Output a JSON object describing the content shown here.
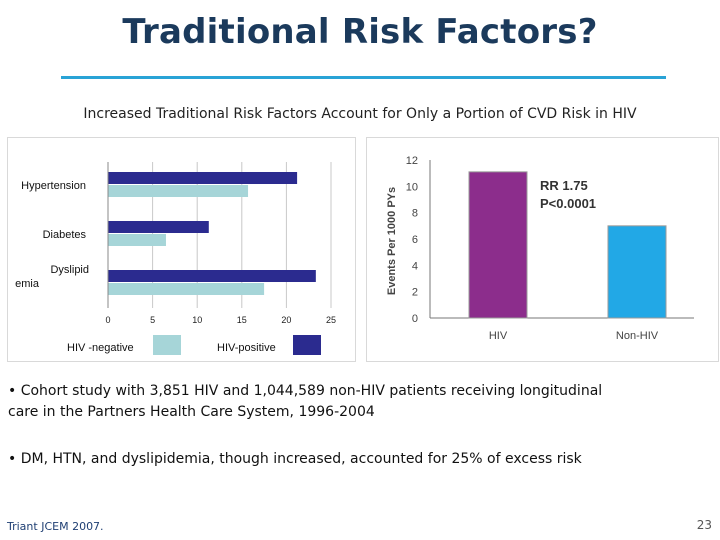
{
  "slide": {
    "title": "Traditional Risk Factors?",
    "subtitle": "Increased Traditional Risk Factors Account for Only a Portion of CVD Risk in HIV",
    "bullets": [
      "• Cohort study with 3,851 HIV and 1,044,589 non-HIV patients receiving longitudinal care in the Partners Health Care System, 1996-2004",
      "• DM, HTN, and dyslipidemia, though increased, accounted for 25% of excess risk"
    ],
    "citation": "Triant  JCEM 2007.",
    "page_number": "23"
  },
  "colors": {
    "title": "#1b3a5c",
    "rule": "#29a3d6",
    "hiv_positive_bar": "#2b2b8f",
    "hiv_negative_bar": "#a6d5d8",
    "hiv_column": "#8c2d8c",
    "non_hiv_column": "#22a8e6"
  },
  "chart_data": [
    {
      "type": "bar",
      "orientation": "horizontal",
      "categories": [
        "Hypertension",
        "Diabetes",
        "Dyslipid emia"
      ],
      "category_label_lines": [
        [
          "Hypertension"
        ],
        [
          "Diabetes"
        ],
        [
          "Dyslipid",
          "emia"
        ]
      ],
      "series": [
        {
          "name": "HIV-positive",
          "values": [
            21.2,
            11.3,
            23.3
          ],
          "color": "#2b2b8f"
        },
        {
          "name": "HIV -negative",
          "values": [
            15.7,
            6.5,
            17.5
          ],
          "color": "#a6d5d8"
        }
      ],
      "xlim": [
        0,
        25
      ],
      "xticks": [
        "0",
        "5",
        "10",
        "15",
        "20",
        "25"
      ],
      "grid": "vertical",
      "legend": "bottom",
      "legend_order": [
        "HIV -negative",
        "HIV-positive"
      ]
    },
    {
      "type": "bar",
      "orientation": "vertical",
      "categories": [
        "HIV",
        "Non-HIV"
      ],
      "values": [
        11.1,
        7.0
      ],
      "colors": [
        "#8c2d8c",
        "#22a8e6"
      ],
      "ylabel": "Events Per 1000 PYs",
      "ylim": [
        0,
        12
      ],
      "yticks": [
        "0",
        "2",
        "4",
        "6",
        "8",
        "10",
        "12"
      ],
      "annotation": [
        "RR 1.75",
        "P<0.0001"
      ],
      "legend": "none"
    }
  ]
}
